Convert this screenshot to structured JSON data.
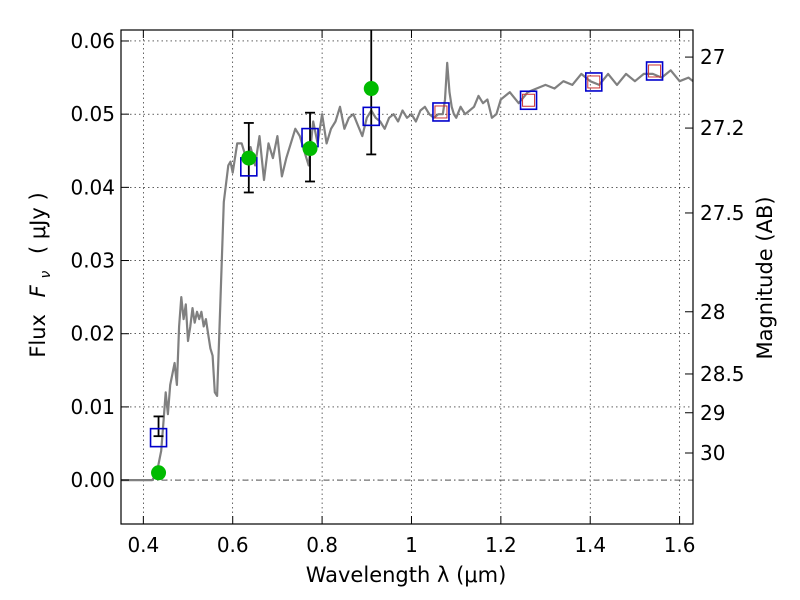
{
  "chart_data": {
    "type": "line",
    "xlabel": "Wavelength  λ (μm)",
    "ylabel": "Flux  F_ν  ( μJy )",
    "ylabel_parts": {
      "prefix": "Flux",
      "symbol": "F",
      "subscript": "ν",
      "unit": "( μJy )"
    },
    "y2label": "Magnitude (AB)",
    "xlim": [
      0.35,
      1.63
    ],
    "ylim": [
      -0.006,
      0.0615
    ],
    "xticks": [
      0.4,
      0.6,
      0.8,
      1.0,
      1.2,
      1.4,
      1.6
    ],
    "xtick_labels": [
      "0.4",
      "0.6",
      "0.8",
      "1",
      "1.2",
      "1.4",
      "1.6"
    ],
    "yticks": [
      0.0,
      0.01,
      0.02,
      0.03,
      0.04,
      0.05,
      0.06
    ],
    "ytick_labels": [
      "0.00",
      "0.01",
      "0.02",
      "0.03",
      "0.04",
      "0.05",
      "0.06"
    ],
    "right_ticks": [
      {
        "label": "27",
        "flux": 0.0578
      },
      {
        "label": "27.2",
        "flux": 0.0481
      },
      {
        "label": "27.5",
        "flux": 0.0365
      },
      {
        "label": "28",
        "flux": 0.023
      },
      {
        "label": "28.5",
        "flux": 0.0145
      },
      {
        "label": "29",
        "flux": 0.0092
      },
      {
        "label": "30",
        "flux": 0.0037
      }
    ],
    "grid": true,
    "colors": {
      "model": "#808080",
      "observed": "#00bb00",
      "model_band": "#0000cc",
      "model_band_inner": "#cc3333",
      "errorbar": "#000000",
      "zero_line": "#555555"
    },
    "series": [
      {
        "role": "model-spectrum",
        "x": [
          0.35,
          0.42,
          0.43,
          0.44,
          0.445,
          0.45,
          0.455,
          0.46,
          0.465,
          0.47,
          0.475,
          0.48,
          0.485,
          0.49,
          0.495,
          0.5,
          0.505,
          0.51,
          0.515,
          0.52,
          0.525,
          0.53,
          0.535,
          0.54,
          0.545,
          0.55,
          0.555,
          0.56,
          0.565,
          0.57,
          0.58,
          0.59,
          0.595,
          0.6,
          0.61,
          0.62,
          0.63,
          0.64,
          0.65,
          0.66,
          0.67,
          0.68,
          0.69,
          0.7,
          0.71,
          0.72,
          0.73,
          0.74,
          0.75,
          0.76,
          0.77,
          0.78,
          0.79,
          0.8,
          0.81,
          0.82,
          0.83,
          0.84,
          0.85,
          0.86,
          0.87,
          0.88,
          0.89,
          0.9,
          0.91,
          0.92,
          0.93,
          0.94,
          0.95,
          0.96,
          0.97,
          0.98,
          0.99,
          1.0,
          1.01,
          1.02,
          1.03,
          1.04,
          1.05,
          1.06,
          1.07,
          1.075,
          1.08,
          1.085,
          1.09,
          1.095,
          1.1,
          1.11,
          1.12,
          1.13,
          1.14,
          1.15,
          1.16,
          1.17,
          1.18,
          1.19,
          1.2,
          1.22,
          1.24,
          1.26,
          1.28,
          1.3,
          1.32,
          1.34,
          1.36,
          1.38,
          1.4,
          1.42,
          1.44,
          1.46,
          1.48,
          1.5,
          1.52,
          1.54,
          1.56,
          1.58,
          1.6,
          1.62,
          1.63
        ],
        "y": [
          0.0,
          0.0,
          0.001,
          0.004,
          0.008,
          0.012,
          0.009,
          0.013,
          0.0145,
          0.016,
          0.013,
          0.021,
          0.025,
          0.022,
          0.024,
          0.019,
          0.021,
          0.0235,
          0.0215,
          0.023,
          0.022,
          0.023,
          0.021,
          0.022,
          0.02,
          0.018,
          0.017,
          0.012,
          0.0115,
          0.02,
          0.038,
          0.043,
          0.0435,
          0.042,
          0.046,
          0.046,
          0.044,
          0.0455,
          0.043,
          0.047,
          0.041,
          0.046,
          0.044,
          0.047,
          0.0415,
          0.044,
          0.046,
          0.048,
          0.047,
          0.045,
          0.043,
          0.049,
          0.046,
          0.05,
          0.046,
          0.048,
          0.049,
          0.051,
          0.048,
          0.0495,
          0.05,
          0.0485,
          0.047,
          0.0495,
          0.0505,
          0.0495,
          0.049,
          0.048,
          0.0495,
          0.05,
          0.049,
          0.0505,
          0.0495,
          0.05,
          0.049,
          0.0505,
          0.051,
          0.05,
          0.0495,
          0.05,
          0.05,
          0.052,
          0.057,
          0.053,
          0.051,
          0.05,
          0.0495,
          0.051,
          0.05,
          0.0505,
          0.051,
          0.0525,
          0.0515,
          0.052,
          0.0495,
          0.05,
          0.052,
          0.053,
          0.0515,
          0.053,
          0.0535,
          0.054,
          0.0535,
          0.0545,
          0.054,
          0.0555,
          0.0545,
          0.054,
          0.0555,
          0.054,
          0.0555,
          0.0545,
          0.0555,
          0.0555,
          0.055,
          0.056,
          0.0545,
          0.055,
          0.0545
        ]
      },
      {
        "role": "observed-photometry",
        "x": [
          0.434,
          0.636,
          0.773,
          0.91
        ],
        "y": [
          0.001,
          0.044,
          0.0453,
          0.0535
        ],
        "yerr_low": [
          0.006,
          0.0393,
          0.0408,
          0.0445
        ],
        "yerr_high": [
          0.0087,
          0.0488,
          0.0502,
          0.0615
        ]
      },
      {
        "role": "model-bandpass-flux",
        "x": [
          0.434,
          0.636,
          0.773,
          0.91,
          1.066,
          1.262,
          1.408,
          1.544
        ],
        "y": [
          0.0058,
          0.0428,
          0.0468,
          0.0497,
          0.0503,
          0.0519,
          0.0544,
          0.0559
        ]
      },
      {
        "role": "model-bandpass-flux-inner",
        "x": [
          1.066,
          1.262,
          1.408,
          1.544
        ],
        "y": [
          0.0503,
          0.0519,
          0.0544,
          0.0559
        ]
      }
    ]
  }
}
